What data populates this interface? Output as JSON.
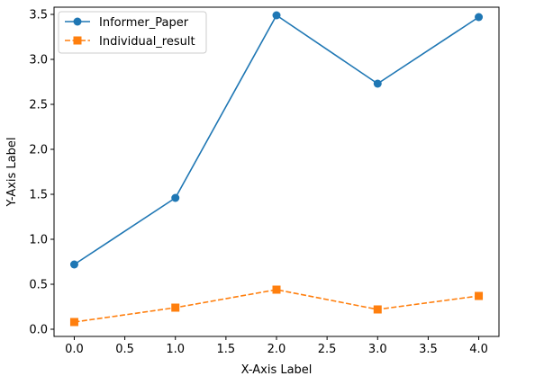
{
  "chart_data": {
    "type": "line",
    "title": "",
    "xlabel": "X-Axis Label",
    "ylabel": "Y-Axis Label",
    "x": [
      0,
      1,
      2,
      3,
      4
    ],
    "xlim": [
      -0.2,
      4.2
    ],
    "ylim": [
      -0.08,
      3.58
    ],
    "xticks": [
      0.0,
      0.5,
      1.0,
      1.5,
      2.0,
      2.5,
      3.0,
      3.5,
      4.0
    ],
    "xtick_labels": [
      "0.0",
      "0.5",
      "1.0",
      "1.5",
      "2.0",
      "2.5",
      "3.0",
      "3.5",
      "4.0"
    ],
    "yticks": [
      0.0,
      0.5,
      1.0,
      1.5,
      2.0,
      2.5,
      3.0,
      3.5
    ],
    "ytick_labels": [
      "0.0",
      "0.5",
      "1.0",
      "1.5",
      "2.0",
      "2.5",
      "3.0",
      "3.5"
    ],
    "grid": false,
    "legend_position": "top-left",
    "series": [
      {
        "name": "Informer_Paper",
        "values": [
          0.72,
          1.46,
          3.49,
          2.73,
          3.47
        ],
        "color": "#1f77b4",
        "line_style": "solid",
        "marker": "circle"
      },
      {
        "name": "Individual_result",
        "values": [
          0.08,
          0.24,
          0.44,
          0.22,
          0.37
        ],
        "color": "#ff7f0e",
        "line_style": "dashed",
        "marker": "square"
      }
    ]
  }
}
